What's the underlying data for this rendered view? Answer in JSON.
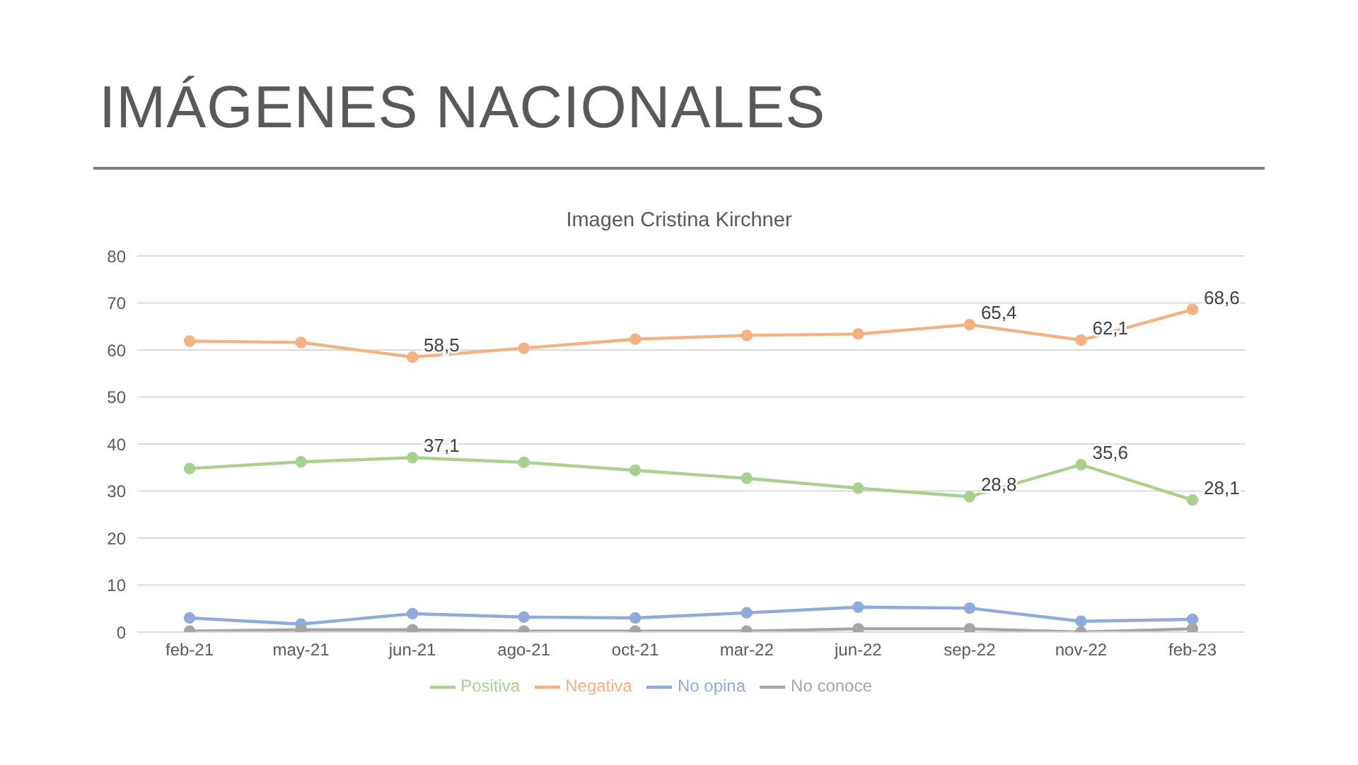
{
  "chart_data": {
    "type": "line",
    "title": "IMÁGENES NACIONALES",
    "subtitle": "Imagen Cristina Kirchner",
    "categories": [
      "feb-21",
      "may-21",
      "jun-21",
      "ago-21",
      "oct-21",
      "mar-22",
      "jun-22",
      "sep-22",
      "nov-22",
      "feb-23"
    ],
    "series": [
      {
        "name": "Positiva",
        "color": "#a9d18e",
        "values": [
          34.8,
          36.2,
          37.1,
          36.1,
          34.4,
          32.7,
          30.6,
          28.8,
          35.6,
          28.1
        ],
        "value_labels": [
          null,
          null,
          "37,1",
          null,
          null,
          null,
          null,
          "28,8",
          "35,6",
          "28,1"
        ]
      },
      {
        "name": "Negativa",
        "color": "#f4b183",
        "values": [
          61.9,
          61.6,
          58.5,
          60.4,
          62.3,
          63.1,
          63.4,
          65.4,
          62.1,
          68.6
        ],
        "value_labels": [
          null,
          null,
          "58,5",
          null,
          null,
          null,
          null,
          "65,4",
          "62,1",
          "68,6"
        ]
      },
      {
        "name": "No opina",
        "color": "#8faadc",
        "values": [
          3.0,
          1.7,
          3.9,
          3.2,
          3.0,
          4.1,
          5.3,
          5.1,
          2.3,
          2.7
        ]
      },
      {
        "name": "No conoce",
        "color": "#a5a5a5",
        "values": [
          0.2,
          0.5,
          0.5,
          0.2,
          0.2,
          0.2,
          0.7,
          0.7,
          0.0,
          0.7
        ]
      }
    ],
    "ylim": [
      0,
      80
    ],
    "yticks": [
      0,
      10,
      20,
      30,
      40,
      50,
      60,
      70,
      80
    ],
    "grid": "y",
    "legend": "bottom",
    "marker": "circle",
    "line_style": "solid"
  }
}
